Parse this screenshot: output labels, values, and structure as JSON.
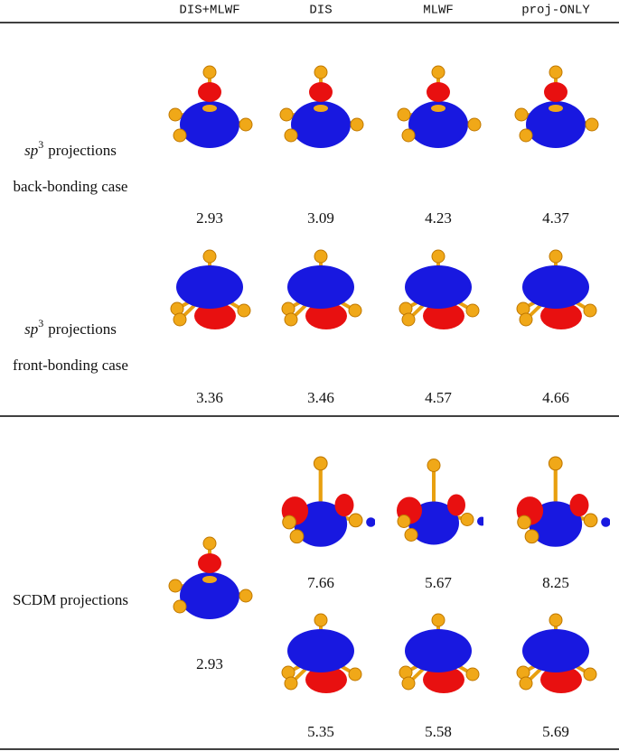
{
  "table": {
    "columns": [
      "DIS+MLWF",
      "DIS",
      "MLWF",
      "proj-ONLY"
    ],
    "rows": [
      {
        "symbol": "sp",
        "exponent": "3",
        "text": "projections",
        "case": "back-bonding case",
        "values": [
          2.93,
          3.09,
          4.23,
          4.37
        ]
      },
      {
        "symbol": "sp",
        "exponent": "3",
        "text": "projections",
        "case": "front-bonding case",
        "values": [
          3.36,
          3.46,
          4.57,
          4.66
        ]
      },
      {
        "label": "SCDM projections",
        "values": [
          2.93
        ],
        "first": [
          7.66,
          5.67,
          8.25
        ],
        "second": [
          5.35,
          5.58,
          5.69
        ]
      }
    ]
  }
}
